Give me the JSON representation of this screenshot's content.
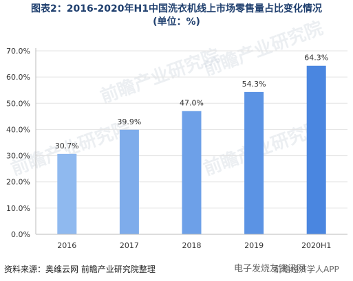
{
  "title_line1": "图表2：2016-2020年H1中国洗衣机线上市场零售量占比变化情况",
  "title_line2": "(单位：%)",
  "source": "资料来源：奥维云网 前瞻产业研究院整理",
  "watermark": {
    "brand": "前瞻产业研究院",
    "brand_small": "前瞻经济学人APP",
    "site_text": "电子发烧友资讯网"
  },
  "colors": {
    "title": "#1f3f6e",
    "bar_light": "#8fb9ef",
    "bar_dark": "#4a86e0",
    "axis": "#bbbbbb",
    "grid": "#e3e3e3"
  },
  "chart_data": {
    "type": "bar",
    "categories": [
      "2016",
      "2017",
      "2018",
      "2019",
      "2020H1"
    ],
    "values": [
      30.7,
      39.9,
      47.0,
      54.3,
      64.3
    ],
    "value_labels": [
      "30.7%",
      "39.9%",
      "47.0%",
      "54.3%",
      "64.3%"
    ],
    "ylim": [
      0,
      70
    ],
    "yticks": [
      "0.0%",
      "10.0%",
      "20.0%",
      "30.0%",
      "40.0%",
      "50.0%",
      "60.0%",
      "70.0%"
    ],
    "grid": true,
    "legend": "none"
  }
}
